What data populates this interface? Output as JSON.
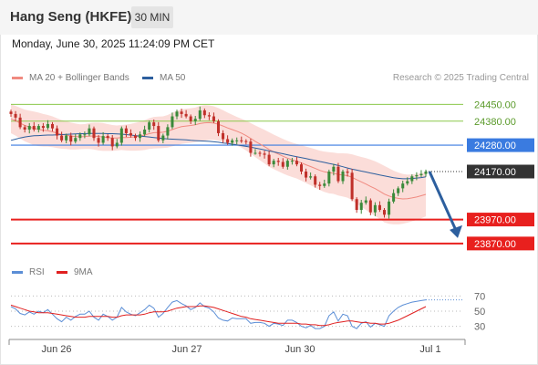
{
  "header": {
    "title": "Hang Seng (HKFE)",
    "timeframe": "30 MIN"
  },
  "datetime": "Monday, June 30, 2025 11:24:09 PM CET",
  "legend": {
    "ma20": {
      "label": "MA 20 + Bollinger Bands",
      "color": "#f08a80"
    },
    "ma50": {
      "label": "MA 50",
      "color": "#2d5f9e"
    }
  },
  "copyright": "Research © 2025 Trading Central",
  "rsi_legend": {
    "rsi": {
      "label": "RSI",
      "color": "#5b8ed6"
    },
    "ma9": {
      "label": "9MA",
      "color": "#e02020"
    }
  },
  "colors": {
    "up": "#3a8a3a",
    "down": "#c0302a",
    "resistance": "#8cc84b",
    "support": "#e8201e",
    "pivot": "#3a7be0",
    "current": "#333333",
    "band_fill": "#fad2cc",
    "arrow": "#2d5f9e"
  },
  "chart_data": [
    {
      "type": "candlestick",
      "x_ticks": [
        "Jun 26",
        "Jun 27",
        "Jun 30",
        "Jul 1"
      ],
      "ylim": [
        23820,
        24520
      ],
      "levels": [
        {
          "label": "24450.00",
          "value": 24450,
          "kind": "resistance"
        },
        {
          "label": "24380.00",
          "value": 24380,
          "kind": "resistance"
        },
        {
          "label": "24280.00",
          "value": 24280,
          "kind": "pivot"
        },
        {
          "label": "24170.00",
          "value": 24170,
          "kind": "current"
        },
        {
          "label": "23970.00",
          "value": 23970,
          "kind": "support"
        },
        {
          "label": "23870.00",
          "value": 23870,
          "kind": "support"
        }
      ],
      "close": [
        24410,
        24395,
        24355,
        24345,
        24360,
        24345,
        24360,
        24352,
        24368,
        24350,
        24320,
        24300,
        24320,
        24295,
        24310,
        24325,
        24325,
        24350,
        24310,
        24290,
        24318,
        24310,
        24275,
        24290,
        24350,
        24330,
        24320,
        24310,
        24325,
        24345,
        24375,
        24360,
        24300,
        24320,
        24355,
        24400,
        24420,
        24410,
        24400,
        24380,
        24390,
        24425,
        24405,
        24400,
        24380,
        24330,
        24305,
        24290,
        24300,
        24300,
        24297,
        24295,
        24248,
        24248,
        24245,
        24240,
        24200,
        24215,
        24210,
        24190,
        24215,
        24215,
        24200,
        24170,
        24145,
        24150,
        24115,
        24110,
        24120,
        24170,
        24190,
        24130,
        24170,
        24165,
        24055,
        24010,
        24040,
        24050,
        24000,
        24030,
        24010,
        23990,
        24045,
        24080,
        24100,
        24120,
        24130,
        24150,
        24155,
        24160,
        24170
      ],
      "ma20": [
        24390,
        24382,
        24372,
        24362,
        24356,
        24350,
        24346,
        24342,
        24340,
        24336,
        24330,
        24325,
        24322,
        24318,
        24316,
        24315,
        24316,
        24318,
        24318,
        24316,
        24314,
        24312,
        24310,
        24310,
        24312,
        24312,
        24313,
        24315,
        24318,
        24322,
        24328,
        24332,
        24333,
        24334,
        24338,
        24345,
        24352,
        24357,
        24360,
        24362,
        24365,
        24370,
        24373,
        24374,
        24372,
        24367,
        24360,
        24352,
        24345,
        24338,
        24330,
        24320,
        24308,
        24296,
        24285,
        24274,
        24262,
        24252,
        24243,
        24234,
        24226,
        24219,
        24213,
        24206,
        24198,
        24191,
        24183,
        24175,
        24169,
        24165,
        24163,
        24158,
        24156,
        24153,
        24146,
        24136,
        24127,
        24118,
        24108,
        24099,
        24088,
        24076,
        24068,
        24062,
        24058,
        24056,
        24057,
        24060,
        24064,
        24069,
        24075
      ],
      "ma50": [
        24300,
        24305,
        24310,
        24314,
        24317,
        24319,
        24320,
        24321,
        24322,
        24322,
        24323,
        24324,
        24325,
        24326,
        24327,
        24328,
        24328,
        24329,
        24329,
        24329,
        24329,
        24328,
        24328,
        24327,
        24326,
        24324,
        24322,
        24320,
        24318,
        24316,
        24314,
        24312,
        24310,
        24308,
        24306,
        24305,
        24304,
        24303,
        24302,
        24300,
        24299,
        24298,
        24297,
        24296,
        24294,
        24292,
        24289,
        24287,
        24284,
        24281,
        24278,
        24275,
        24272,
        24268,
        24264,
        24260,
        24256,
        24252,
        24248,
        24244,
        24240,
        24236,
        24232,
        24228,
        24224,
        24220,
        24216,
        24212,
        24208,
        24204,
        24200,
        24195,
        24190,
        24185,
        24180,
        24176,
        24172,
        24168,
        24164,
        24160,
        24156,
        24152,
        24148,
        24144,
        24142,
        24140,
        24140,
        24141,
        24143,
        24145,
        24148
      ],
      "bb_width": [
        60,
        62,
        64,
        66,
        68,
        70,
        70,
        68,
        66,
        64,
        62,
        60,
        58,
        56,
        54,
        52,
        52,
        54,
        56,
        58,
        58,
        56,
        54,
        52,
        52,
        54,
        56,
        58,
        60,
        62,
        64,
        66,
        66,
        66,
        68,
        70,
        72,
        72,
        72,
        72,
        72,
        74,
        74,
        72,
        70,
        68,
        66,
        64,
        62,
        60,
        60,
        62,
        64,
        66,
        68,
        70,
        72,
        72,
        72,
        72,
        72,
        72,
        72,
        74,
        76,
        78,
        80,
        82,
        84,
        86,
        86,
        88,
        90,
        92,
        96,
        100,
        104,
        108,
        112,
        114,
        116,
        118,
        116,
        112,
        108,
        104,
        100,
        98,
        96,
        94,
        92
      ]
    },
    {
      "type": "line",
      "name": "RSI",
      "levels": [
        70,
        50,
        30
      ],
      "ylim": [
        15,
        85
      ],
      "rsi": [
        56,
        53,
        47,
        45,
        49,
        46,
        50,
        48,
        52,
        46,
        40,
        36,
        42,
        38,
        43,
        46,
        46,
        50,
        42,
        38,
        46,
        43,
        38,
        42,
        55,
        49,
        46,
        44,
        48,
        52,
        58,
        54,
        42,
        47,
        55,
        62,
        64,
        60,
        57,
        52,
        55,
        61,
        56,
        54,
        49,
        41,
        38,
        37,
        41,
        40,
        40,
        40,
        34,
        35,
        35,
        34,
        30,
        34,
        33,
        31,
        38,
        38,
        35,
        30,
        28,
        31,
        27,
        27,
        30,
        44,
        49,
        37,
        46,
        44,
        30,
        27,
        34,
        36,
        29,
        34,
        32,
        30,
        44,
        50,
        55,
        58,
        60,
        62,
        63,
        64,
        65
      ],
      "ma9": [
        58,
        56,
        54,
        52,
        50,
        49,
        48,
        48,
        48,
        47,
        46,
        45,
        44,
        43,
        42,
        42,
        42,
        43,
        43,
        43,
        43,
        43,
        42,
        42,
        44,
        45,
        45,
        45,
        45,
        46,
        48,
        49,
        49,
        49,
        50,
        52,
        54,
        55,
        56,
        56,
        56,
        57,
        57,
        56,
        55,
        53,
        51,
        49,
        47,
        45,
        43,
        42,
        40,
        39,
        38,
        37,
        36,
        35,
        34,
        34,
        34,
        34,
        34,
        33,
        33,
        32,
        32,
        31,
        31,
        32,
        34,
        35,
        36,
        37,
        37,
        36,
        35,
        35,
        34,
        34,
        33,
        33,
        34,
        36,
        38,
        41,
        44,
        47,
        50,
        53,
        56
      ]
    }
  ]
}
